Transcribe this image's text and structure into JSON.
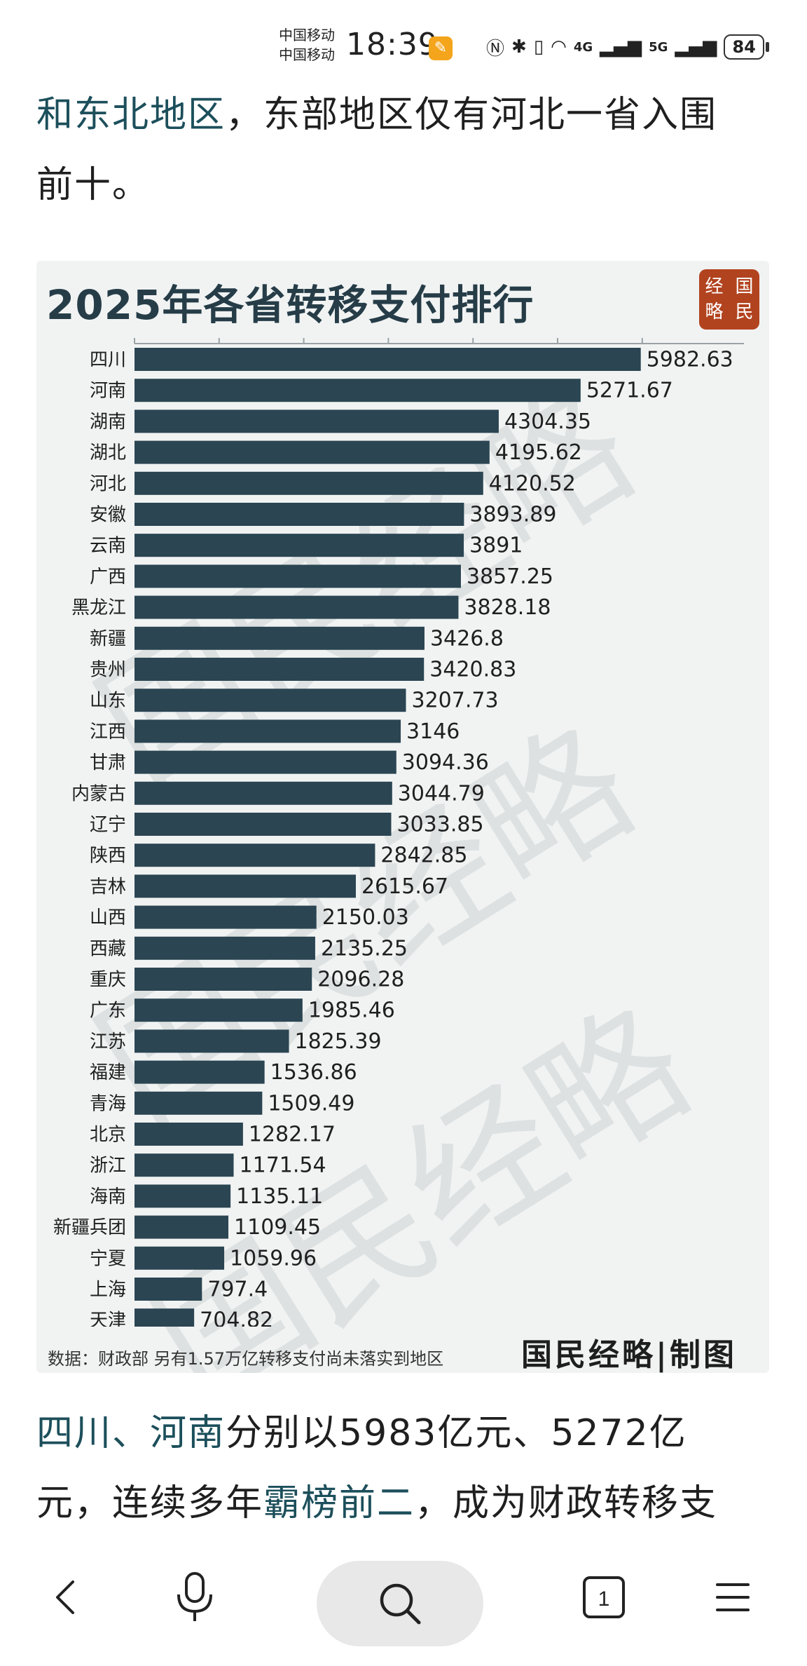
{
  "status_bar": {
    "carrier_1": "中国移动",
    "carrier_2": "中国移动",
    "time": "18:39",
    "network_4g": "4G",
    "network_5g": "5G",
    "battery": "84"
  },
  "article": {
    "top_line1_highlight": "和东北地区",
    "top_line1_rest": "，东部地区仅有河北一省入围",
    "top_line2": "前十。",
    "bottom_hl1": "四川",
    "bottom_sep": "、",
    "bottom_hl2": "河南",
    "bottom_text1": "分别以5983亿元、5272亿",
    "bottom_text2": "元，连续多年",
    "bottom_hl3": "霸榜前二",
    "bottom_text3": "，成为财政转移支"
  },
  "chart_card": {
    "title": "2025年各省转移支付排行",
    "seal": [
      "经",
      "国",
      "略",
      "民"
    ],
    "watermark": "国民经略",
    "footnote": "数据：财政部 另有1.57万亿转移支付尚未落实到地区",
    "credit": "国民经略|制图"
  },
  "chart_data": {
    "type": "bar",
    "orientation": "horizontal",
    "title": "2025年各省转移支付排行",
    "bar_color": "#2b4552",
    "categories": [
      "四川",
      "河南",
      "湖南",
      "湖北",
      "河北",
      "安徽",
      "云南",
      "广西",
      "黑龙江",
      "新疆",
      "贵州",
      "山东",
      "江西",
      "甘肃",
      "内蒙古",
      "辽宁",
      "陕西",
      "吉林",
      "山西",
      "西藏",
      "重庆",
      "广东",
      "江苏",
      "福建",
      "青海",
      "北京",
      "浙江",
      "海南",
      "新疆兵团",
      "宁夏",
      "上海",
      "天津"
    ],
    "values": [
      5982.63,
      5271.67,
      4304.35,
      4195.62,
      4120.52,
      3893.89,
      3891,
      3857.25,
      3828.18,
      3426.8,
      3420.83,
      3207.73,
      3146,
      3094.36,
      3044.79,
      3033.85,
      2842.85,
      2615.67,
      2150.03,
      2135.25,
      2096.28,
      1985.46,
      1825.39,
      1536.86,
      1509.49,
      1282.17,
      1171.54,
      1135.11,
      1109.45,
      1059.96,
      797.4,
      704.82
    ],
    "labels": [
      "5982.63",
      "5271.67",
      "4304.35",
      "4195.62",
      "4120.52",
      "3893.89",
      "3891",
      "3857.25",
      "3828.18",
      "3426.8",
      "3420.83",
      "3207.73",
      "3146",
      "3094.36",
      "3044.79",
      "3033.85",
      "2842.85",
      "2615.67",
      "2150.03",
      "2135.25",
      "2096.28",
      "1985.46",
      "1825.39",
      "1536.86",
      "1509.49",
      "1282.17",
      "1171.54",
      "1135.11",
      "1109.45",
      "1059.96",
      "797.4",
      "704.82"
    ],
    "xlim": [
      0,
      7500
    ],
    "top_ticks": true
  },
  "bottom_nav": {
    "tab_count": "1"
  }
}
